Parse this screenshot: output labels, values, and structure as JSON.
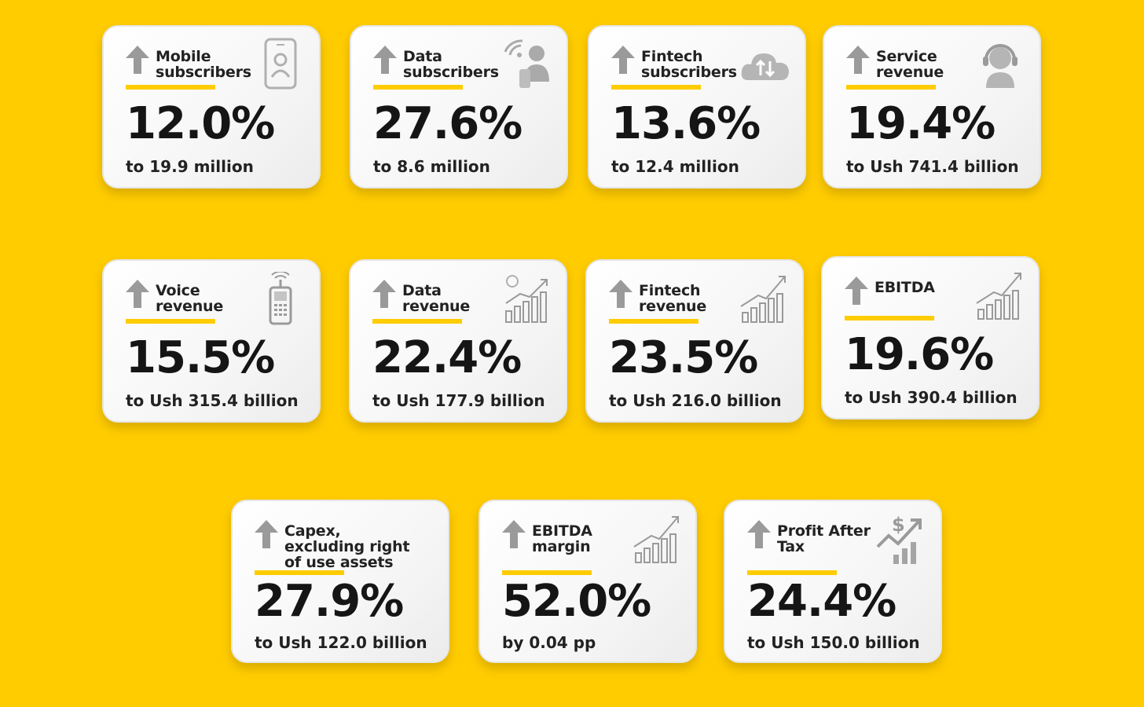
{
  "colors": {
    "background": "#FFCC00",
    "accent": "#FFCC00",
    "icon_gray": "#9a9a9a",
    "text": "#151515"
  },
  "cards": [
    {
      "label": "Mobile\nsubscribers",
      "value": "12.0%",
      "caption": "to 19.9 million",
      "direction": "up",
      "icon": "mobile-phone-person-icon"
    },
    {
      "label": "Data\nsubscribers",
      "value": "27.6%",
      "caption": "to 8.6 million",
      "direction": "up",
      "icon": "wifi-user-icon"
    },
    {
      "label": "Fintech\nsubscribers",
      "value": "13.6%",
      "caption": "to 12.4 million",
      "direction": "up",
      "icon": "cloud-transfer-icon"
    },
    {
      "label": "Service\nrevenue",
      "value": "19.4%",
      "caption": "to Ush 741.4 billion",
      "direction": "up",
      "icon": "headset-agent-icon"
    },
    {
      "label": "Voice\nrevenue",
      "value": "15.5%",
      "caption": "to Ush 315.4 billion",
      "direction": "up",
      "icon": "feature-phone-icon"
    },
    {
      "label": "Data\nrevenue",
      "value": "22.4%",
      "caption": "to Ush 177.9 billion",
      "direction": "up",
      "icon": "data-growth-chart-icon"
    },
    {
      "label": "Fintech\nrevenue",
      "value": "23.5%",
      "caption": "to Ush 216.0 billion",
      "direction": "up",
      "icon": "growth-chart-icon"
    },
    {
      "label": "EBITDA",
      "value": "19.6%",
      "caption": "to Ush 390.4 billion",
      "direction": "up",
      "icon": "growth-chart-icon"
    },
    {
      "label": "Capex,\nexcluding right\nof use assets",
      "value": "27.9%",
      "caption": "to Ush 122.0 billion",
      "direction": "up",
      "icon": "none"
    },
    {
      "label": "EBITDA\nmargin",
      "value": "52.0%",
      "caption": "by 0.04 pp",
      "direction": "up",
      "icon": "growth-chart-icon"
    },
    {
      "label": "Profit After\nTax",
      "value": "24.4%",
      "caption": "to Ush 150.0 billion",
      "direction": "up",
      "icon": "dollar-growth-chart-icon"
    }
  ]
}
